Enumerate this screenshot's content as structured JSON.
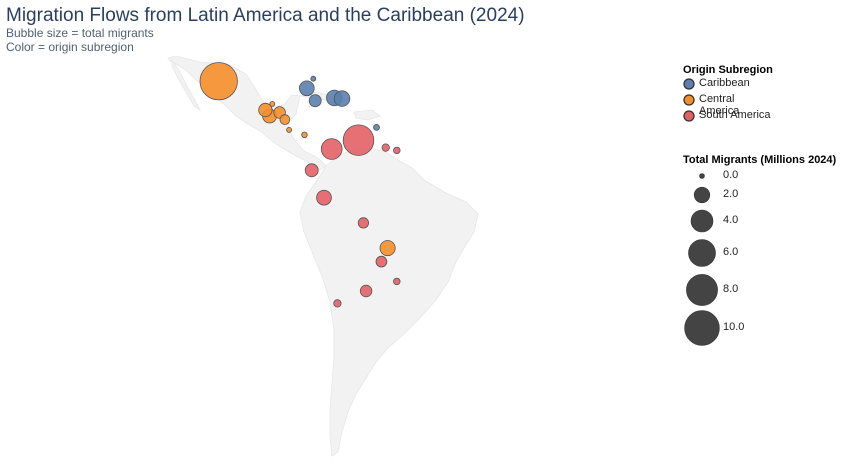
{
  "title": "Migration Flows from Latin America and the Caribbean (2024)",
  "subtitle_lines": [
    "Bubble size = total migrants",
    "Color = origin subregion"
  ],
  "colors": {
    "Caribbean": "#5b7fae",
    "Central America": "#f68f2a",
    "South America": "#e46066",
    "land": "#f2f2f2",
    "bubble_border": "#555555",
    "size_legend": "#444444"
  },
  "legend_color": {
    "title": "Origin Subregion",
    "items": [
      "Caribbean",
      "Central America",
      "South America"
    ]
  },
  "legend_size": {
    "title": "Total Migrants (Millions 2024)",
    "values": [
      0.0,
      2.0,
      4.0,
      6.0,
      8.0,
      10.0
    ],
    "labels": [
      "0.0",
      "2.0",
      "4.0",
      "6.0",
      "8.0",
      "10.0"
    ]
  },
  "chart_data": {
    "type": "bubble-map",
    "points": [
      {
        "region": "Central America",
        "lon": -102.5,
        "lat": 23.6,
        "value": 11.5
      },
      {
        "region": "Central America",
        "lon": -90.3,
        "lat": 15.5,
        "value": 1.5
      },
      {
        "region": "Central America",
        "lon": -89.2,
        "lat": 13.8,
        "value": 1.6
      },
      {
        "region": "Central America",
        "lon": -88.5,
        "lat": 17.2,
        "value": 0.05
      },
      {
        "region": "Central America",
        "lon": -86.6,
        "lat": 14.8,
        "value": 1.1
      },
      {
        "region": "Central America",
        "lon": -85.2,
        "lat": 12.8,
        "value": 0.8
      },
      {
        "region": "Central America",
        "lon": -84.1,
        "lat": 9.9,
        "value": 0.2
      },
      {
        "region": "Central America",
        "lon": -80.1,
        "lat": 8.5,
        "value": 0.25
      },
      {
        "region": "Central America",
        "lon": -58.4,
        "lat": -23.4,
        "value": 1.9
      },
      {
        "region": "Caribbean",
        "lon": -77.8,
        "lat": 24.3,
        "value": 0.05
      },
      {
        "region": "Caribbean",
        "lon": -79.5,
        "lat": 21.6,
        "value": 1.8
      },
      {
        "region": "Caribbean",
        "lon": -77.3,
        "lat": 18.1,
        "value": 1.2
      },
      {
        "region": "Caribbean",
        "lon": -72.3,
        "lat": 18.9,
        "value": 2.0
      },
      {
        "region": "Caribbean",
        "lon": -70.3,
        "lat": 18.7,
        "value": 2.0
      },
      {
        "region": "Caribbean",
        "lon": -61.3,
        "lat": 10.6,
        "value": 0.3
      },
      {
        "region": "South America",
        "lon": -66.0,
        "lat": 7.0,
        "value": 7.7
      },
      {
        "region": "South America",
        "lon": -73.0,
        "lat": 4.5,
        "value": 3.6
      },
      {
        "region": "South America",
        "lon": -58.9,
        "lat": 4.9,
        "value": 0.45
      },
      {
        "region": "South America",
        "lon": -56.0,
        "lat": 4.1,
        "value": 0.35
      },
      {
        "region": "South America",
        "lon": -78.2,
        "lat": -1.5,
        "value": 1.4
      },
      {
        "region": "South America",
        "lon": -75.0,
        "lat": -9.2,
        "value": 1.8
      },
      {
        "region": "South America",
        "lon": -64.7,
        "lat": -16.3,
        "value": 0.9
      },
      {
        "region": "South America",
        "lon": -60.0,
        "lat": -27.2,
        "value": 0.95
      },
      {
        "region": "South America",
        "lon": -56.0,
        "lat": -32.8,
        "value": 0.35
      },
      {
        "region": "South America",
        "lon": -64.0,
        "lat": -35.5,
        "value": 1.1
      },
      {
        "region": "South America",
        "lon": -71.5,
        "lat": -39.0,
        "value": 0.45
      }
    ]
  }
}
